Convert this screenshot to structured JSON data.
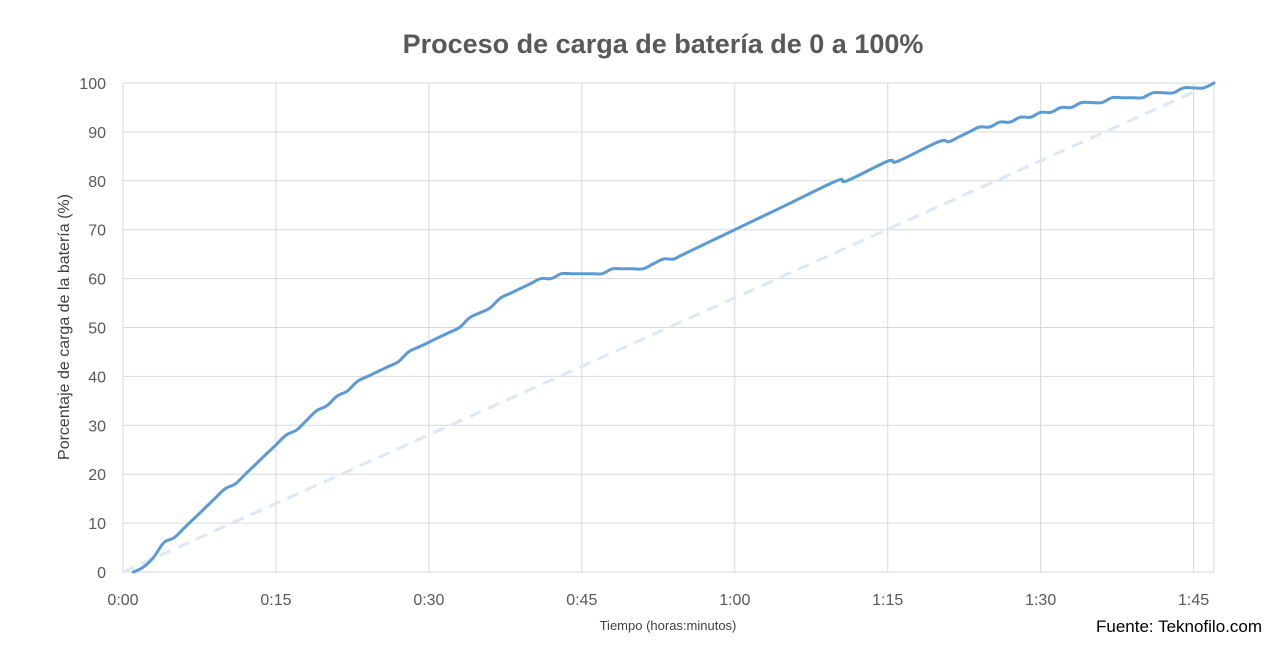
{
  "chart_data": {
    "type": "line",
    "title": "Proceso de carga de batería de 0 a 100%",
    "xlabel": "Tiempo (horas:minutos)",
    "ylabel": "Porcentaje de carga de la batería (%)",
    "source": "Fuente: Teknofilo.com",
    "x_unit": "minutes",
    "xlim": [
      0,
      107
    ],
    "ylim": [
      0,
      100
    ],
    "x_ticks": [
      {
        "value": 0,
        "label": "0:00"
      },
      {
        "value": 15,
        "label": "0:15"
      },
      {
        "value": 30,
        "label": "0:30"
      },
      {
        "value": 45,
        "label": "0:45"
      },
      {
        "value": 60,
        "label": "1:00"
      },
      {
        "value": 75,
        "label": "1:15"
      },
      {
        "value": 90,
        "label": "1:30"
      },
      {
        "value": 105,
        "label": "1:45"
      }
    ],
    "y_ticks": [
      0,
      10,
      20,
      30,
      40,
      50,
      60,
      70,
      80,
      90,
      100
    ],
    "grid": true,
    "legend": "none",
    "series": [
      {
        "color": "#5b9bd5",
        "style": "solid",
        "x": [
          1,
          2,
          3,
          4,
          5,
          6,
          7,
          8,
          9,
          10,
          11,
          12,
          13,
          14,
          15,
          16,
          17,
          18,
          19,
          20,
          21,
          22,
          23,
          24,
          25,
          26,
          27,
          28,
          29,
          30,
          31,
          32,
          33,
          34,
          35,
          36,
          37,
          38,
          39,
          40,
          41,
          42,
          43,
          44,
          45,
          46,
          47,
          48,
          49,
          50,
          51,
          52,
          53,
          54,
          55,
          60,
          65,
          70,
          71,
          75,
          76,
          80,
          81,
          82,
          83,
          84,
          85,
          86,
          87,
          88,
          89,
          90,
          91,
          92,
          93,
          94,
          95,
          96,
          97,
          98,
          99,
          100,
          101,
          102,
          103,
          104,
          105,
          106,
          107
        ],
        "y": [
          0,
          1,
          3,
          6,
          7,
          9,
          11,
          13,
          15,
          17,
          18,
          20,
          22,
          24,
          26,
          28,
          29,
          31,
          33,
          34,
          36,
          37,
          39,
          40,
          41,
          42,
          43,
          45,
          46,
          47,
          48,
          49,
          50,
          52,
          53,
          54,
          56,
          57,
          58,
          59,
          60,
          60,
          61,
          61,
          61,
          61,
          61,
          62,
          62,
          62,
          62,
          63,
          64,
          64,
          65,
          70,
          75,
          80,
          80,
          84,
          84,
          88,
          88,
          89,
          90,
          91,
          91,
          92,
          92,
          93,
          93,
          94,
          94,
          95,
          95,
          96,
          96,
          96,
          97,
          97,
          97,
          97,
          98,
          98,
          98,
          99,
          99,
          99,
          100
        ]
      },
      {
        "color": "#dbe8f6",
        "style": "dashed",
        "x": [
          0,
          107
        ],
        "y": [
          0,
          100
        ]
      }
    ]
  }
}
